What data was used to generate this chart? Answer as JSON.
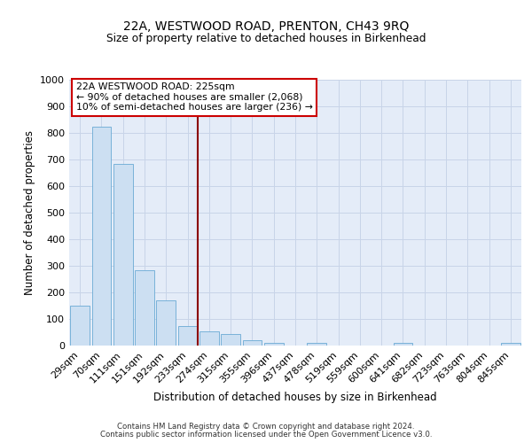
{
  "title1": "22A, WESTWOOD ROAD, PRENTON, CH43 9RQ",
  "title2": "Size of property relative to detached houses in Birkenhead",
  "xlabel": "Distribution of detached houses by size in Birkenhead",
  "ylabel": "Number of detached properties",
  "bar_labels": [
    "29sqm",
    "70sqm",
    "111sqm",
    "151sqm",
    "192sqm",
    "233sqm",
    "274sqm",
    "315sqm",
    "355sqm",
    "396sqm",
    "437sqm",
    "478sqm",
    "519sqm",
    "559sqm",
    "600sqm",
    "641sqm",
    "682sqm",
    "723sqm",
    "763sqm",
    "804sqm",
    "845sqm"
  ],
  "bar_heights": [
    150,
    825,
    685,
    285,
    170,
    75,
    55,
    45,
    20,
    10,
    0,
    10,
    0,
    0,
    0,
    10,
    0,
    0,
    0,
    0,
    10
  ],
  "bar_color": "#ccdff2",
  "bar_edge_color": "#6aaad4",
  "vline_color": "#8b0000",
  "annotation_line1": "22A WESTWOOD ROAD: 225sqm",
  "annotation_line2": "← 90% of detached houses are smaller (2,068)",
  "annotation_line3": "10% of semi-detached houses are larger (236) →",
  "annotation_box_color": "#ffffff",
  "annotation_box_edge": "#cc0000",
  "ylim": [
    0,
    1000
  ],
  "yticks": [
    0,
    100,
    200,
    300,
    400,
    500,
    600,
    700,
    800,
    900,
    1000
  ],
  "grid_color": "#c8d4e8",
  "bg_color": "#e4ecf8",
  "footer1": "Contains HM Land Registry data © Crown copyright and database right 2024.",
  "footer2": "Contains public sector information licensed under the Open Government Licence v3.0."
}
